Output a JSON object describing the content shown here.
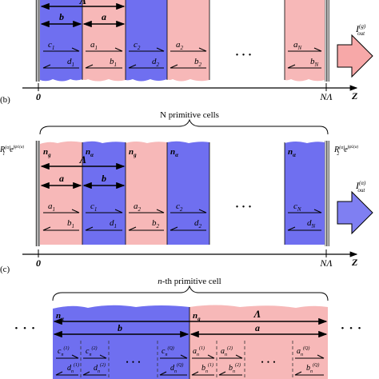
{
  "panel_a": {
    "cell_period": "Λ",
    "len_b": "b",
    "len_a": "a",
    "rows": [
      [
        {
          "t": "c",
          "s": "1"
        },
        {
          "t": "a",
          "s": "1"
        },
        {
          "t": "c",
          "s": "2"
        },
        {
          "t": "a",
          "s": "2"
        },
        {
          "t": "a",
          "s": "N"
        }
      ],
      [
        {
          "t": "d",
          "s": "1"
        },
        {
          "t": "b",
          "s": "1"
        },
        {
          "t": "d",
          "s": "2"
        },
        {
          "t": "b",
          "s": "2"
        },
        {
          "t": "b",
          "s": "N"
        }
      ]
    ],
    "dots": "• • •",
    "dots_top": "• • •",
    "output": {
      "main": "I",
      "sub": "out",
      "sup": "(g)"
    },
    "axis": {
      "zero": "0",
      "end": "NΛ",
      "label": "Z"
    }
  },
  "panel_b": {
    "label": "(b)",
    "brace_label": "N primitive cells",
    "index_labels": [
      {
        "t": "n",
        "s": "g"
      },
      {
        "t": "n",
        "s": "α"
      },
      {
        "t": "n",
        "s": "g"
      },
      {
        "t": "n",
        "s": "α"
      },
      {
        "t": "n",
        "s": "α"
      }
    ],
    "cell_period": "Λ",
    "len_a": "a",
    "len_b": "b",
    "rows": [
      [
        {
          "t": "a",
          "s": "1"
        },
        {
          "t": "c",
          "s": "1"
        },
        {
          "t": "a",
          "s": "2"
        },
        {
          "t": "c",
          "s": "2"
        },
        {
          "t": "c",
          "s": "N"
        }
      ],
      [
        {
          "t": "b",
          "s": "1"
        },
        {
          "t": "d",
          "s": "1"
        },
        {
          "t": "b",
          "s": "2"
        },
        {
          "t": "d",
          "s": "2"
        },
        {
          "t": "d",
          "s": "N"
        }
      ]
    ],
    "dots": "• • •",
    "left_reflect": {
      "main": "R",
      "sub": "1",
      "sup": "(α)",
      "exp": "e",
      "exp_sup": "jφ",
      "exp_sub": "1",
      "exp_sup2": "(α)"
    },
    "right_reflect": {
      "main": "R",
      "sub": "2",
      "sup": "(α)",
      "exp": "e",
      "exp_sup": "jφ",
      "exp_sub": "2",
      "exp_sup2": "(α)"
    },
    "output": {
      "main": "I",
      "sub": "out",
      "sup": "(α)"
    },
    "axis": {
      "zero": "0",
      "end": "NΛ",
      "label": "Z"
    }
  },
  "panel_c": {
    "label": "(c)",
    "brace_label_italic": "n",
    "brace_label_rest": "-th primitive cell",
    "index_labels": [
      {
        "t": "n",
        "s": "α"
      },
      {
        "t": "n",
        "s": "g"
      }
    ],
    "cell_period": "Λ",
    "len_b": "b",
    "len_a": "a",
    "blue_rows": [
      [
        {
          "t": "c",
          "s": "n",
          "q": "(1)"
        },
        {
          "t": "c",
          "s": "n",
          "q": "(2)"
        },
        {
          "t": "c",
          "s": "n",
          "q": "(Q)"
        }
      ],
      [
        {
          "t": "d",
          "s": "n",
          "q": "(1)"
        },
        {
          "t": "d",
          "s": "n",
          "q": "(2)"
        },
        {
          "t": "d",
          "s": "n",
          "q": "(Q)"
        }
      ]
    ],
    "pink_rows": [
      [
        {
          "t": "a",
          "s": "n",
          "q": "(1)"
        },
        {
          "t": "a",
          "s": "n",
          "q": "(2)"
        },
        {
          "t": "a",
          "s": "n",
          "q": "(Q)"
        }
      ],
      [
        {
          "t": "b",
          "s": "n",
          "q": "(1)"
        },
        {
          "t": "b",
          "s": "n",
          "q": "(2)"
        },
        {
          "t": "b",
          "s": "n",
          "q": "(Q)"
        }
      ]
    ],
    "side_dots": "• • •",
    "inner_dots": "• • •"
  },
  "colors": {
    "blue_layer": "#6f6ff0",
    "pink_layer": "#f7b8b8",
    "arrow_fill": "#f7a8a8",
    "arrow_fill_b": "#7f7ff2",
    "mirror": "#8a8a8a"
  }
}
